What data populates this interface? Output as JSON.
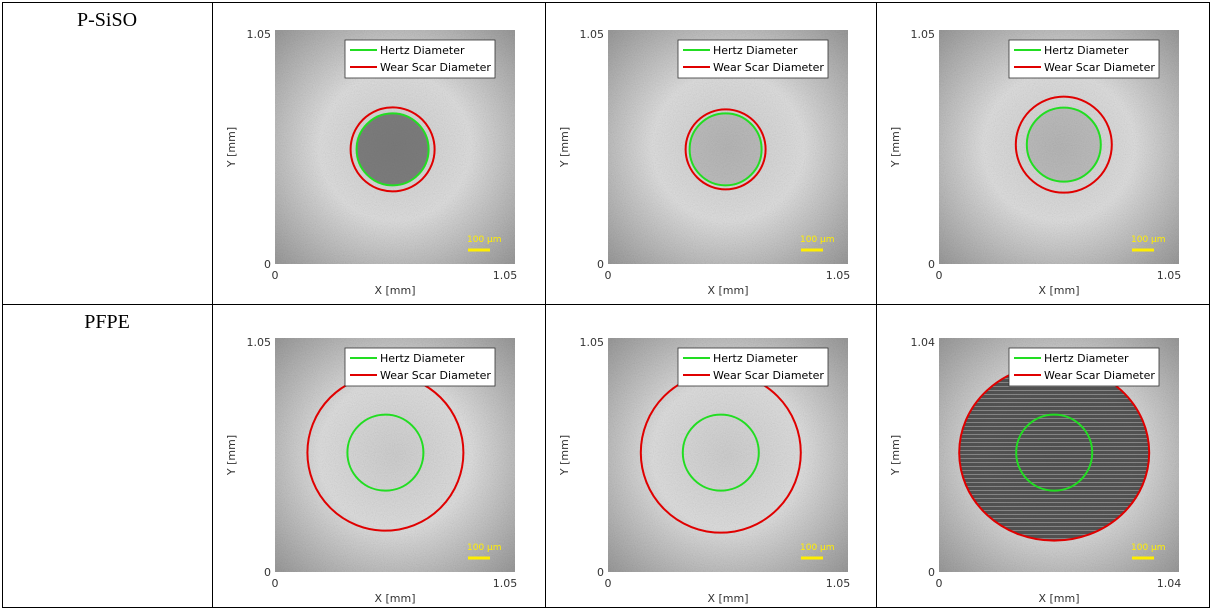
{
  "table": {
    "rows": [
      {
        "label": "P-SiSO",
        "cells": [
          {
            "y_ticks": [
              "1.05",
              "0"
            ],
            "x_ticks": [
              "0",
              "1.05"
            ],
            "x_label": "X [mm]",
            "y_label": "Y [mm]",
            "legend": [
              "Hertz Diameter",
              "Wear Scar Diameter"
            ],
            "scale_bar": "100 μm"
          },
          {
            "y_ticks": [
              "1.05",
              "0"
            ],
            "x_ticks": [
              "0",
              "1.05"
            ],
            "x_label": "X [mm]",
            "y_label": "Y [mm]",
            "legend": [
              "Hertz Diameter",
              "Wear Scar Diameter"
            ],
            "scale_bar": "100 μm"
          },
          {
            "y_ticks": [
              "1.05",
              "0"
            ],
            "x_ticks": [
              "0",
              "1.05"
            ],
            "x_label": "X [mm]",
            "y_label": "Y [mm]",
            "legend": [
              "Hertz Diameter",
              "Wear Scar Diameter"
            ],
            "scale_bar": "100 μm"
          }
        ]
      },
      {
        "label": "PFPE",
        "cells": [
          {
            "y_ticks": [
              "1.05",
              "0"
            ],
            "x_ticks": [
              "0",
              "1.05"
            ],
            "x_label": "X [mm]",
            "y_label": "Y [mm]",
            "legend": [
              "Hertz Diameter",
              "Wear Scar Diameter"
            ],
            "scale_bar": "100 μm"
          },
          {
            "y_ticks": [
              "1.05",
              "0"
            ],
            "x_ticks": [
              "0",
              "1.05"
            ],
            "x_label": "X [mm]",
            "y_label": "Y [mm]",
            "legend": [
              "Hertz Diameter",
              "Wear Scar Diameter"
            ],
            "scale_bar": "100 μm"
          },
          {
            "y_ticks": [
              "1.04",
              "0"
            ],
            "x_ticks": [
              "0",
              "1.04"
            ],
            "x_label": "X [mm]",
            "y_label": "Y [mm]",
            "legend": [
              "Hertz Diameter",
              "Wear Scar Diameter"
            ],
            "scale_bar": "100 μm"
          }
        ]
      }
    ]
  }
}
